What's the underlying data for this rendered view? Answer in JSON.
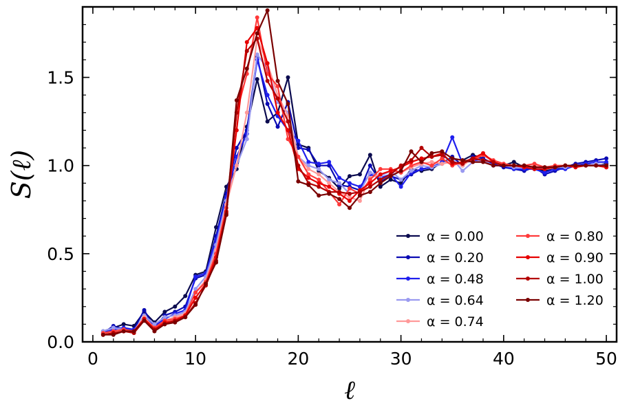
{
  "chart_data": {
    "type": "line",
    "xlabel": "ℓ",
    "ylabel": "S(ℓ)",
    "xlim": [
      -1,
      51
    ],
    "ylim": [
      0,
      1.9
    ],
    "xticks": [
      0,
      10,
      20,
      30,
      40,
      50
    ],
    "xtick_labels": [
      "0",
      "10",
      "20",
      "30",
      "40",
      "50"
    ],
    "yticks": [
      0.0,
      0.5,
      1.0,
      1.5
    ],
    "ytick_labels": [
      "0.0",
      "0.5",
      "1.0",
      "1.5"
    ],
    "grid": false,
    "legend_position": "lower-right",
    "legend_columns": 2,
    "x": [
      1,
      2,
      3,
      4,
      5,
      6,
      7,
      8,
      9,
      10,
      11,
      12,
      13,
      14,
      15,
      16,
      17,
      18,
      19,
      20,
      21,
      22,
      23,
      24,
      25,
      26,
      27,
      28,
      29,
      30,
      31,
      32,
      33,
      34,
      35,
      36,
      37,
      38,
      39,
      40,
      41,
      42,
      43,
      44,
      45,
      46,
      47,
      48,
      49,
      50
    ],
    "series": [
      {
        "name": "α = 0.00",
        "color": "#0b0b4f",
        "values": [
          0.06,
          0.08,
          0.1,
          0.09,
          0.17,
          0.11,
          0.17,
          0.2,
          0.26,
          0.38,
          0.4,
          0.65,
          0.88,
          0.98,
          1.22,
          1.49,
          1.25,
          1.3,
          1.5,
          1.12,
          1.1,
          0.97,
          0.93,
          0.87,
          0.94,
          0.95,
          1.06,
          0.88,
          0.92,
          0.9,
          0.98,
          0.97,
          0.98,
          1.02,
          1.04,
          1.03,
          1.06,
          1.04,
          1.0,
          1.0,
          1.02,
          0.99,
          0.98,
          0.97,
          0.98,
          0.99,
          1.0,
          1.01,
          1.0,
          1.01
        ]
      },
      {
        "name": "α = 0.20",
        "color": "#0a0ab3",
        "values": [
          0.05,
          0.09,
          0.07,
          0.07,
          0.18,
          0.08,
          0.15,
          0.17,
          0.2,
          0.36,
          0.38,
          0.6,
          0.84,
          1.1,
          1.2,
          1.62,
          1.35,
          1.22,
          1.36,
          1.1,
          1.09,
          1.0,
          1.0,
          0.89,
          0.88,
          0.86,
          1.0,
          0.91,
          0.94,
          0.92,
          0.95,
          0.98,
          0.99,
          1.01,
          1.05,
          1.0,
          1.05,
          1.04,
          1.01,
          0.99,
          0.98,
          0.97,
          0.99,
          0.95,
          0.97,
          0.99,
          1.01,
          1.02,
          1.03,
          1.04
        ]
      },
      {
        "name": "α = 0.48",
        "color": "#1f1fee",
        "values": [
          0.05,
          0.07,
          0.08,
          0.07,
          0.14,
          0.09,
          0.13,
          0.16,
          0.18,
          0.37,
          0.39,
          0.58,
          0.82,
          1.05,
          1.18,
          1.6,
          1.4,
          1.28,
          1.2,
          1.14,
          1.02,
          1.01,
          1.02,
          0.93,
          0.9,
          0.88,
          0.95,
          0.93,
          0.95,
          0.88,
          0.96,
          0.98,
          0.99,
          1.02,
          1.16,
          1.01,
          1.03,
          1.03,
          1.0,
          1.0,
          0.98,
          0.98,
          0.98,
          0.96,
          0.98,
          0.98,
          1.0,
          1.01,
          1.02,
          1.02
        ]
      },
      {
        "name": "α = 0.64",
        "color": "#9a9af0",
        "values": [
          0.06,
          0.08,
          0.07,
          0.06,
          0.15,
          0.1,
          0.14,
          0.15,
          0.17,
          0.3,
          0.37,
          0.55,
          0.8,
          1.0,
          1.15,
          1.63,
          1.55,
          1.36,
          1.3,
          1.05,
          1.0,
          0.98,
          0.92,
          0.9,
          0.84,
          0.85,
          0.96,
          0.94,
          0.97,
          0.92,
          0.97,
          1.0,
          0.99,
          1.01,
          1.04,
          0.97,
          1.02,
          1.03,
          1.0,
          1.0,
          0.99,
          0.99,
          0.99,
          0.98,
          0.99,
          0.99,
          1.0,
          1.0,
          1.01,
          1.0
        ]
      },
      {
        "name": "α = 0.74",
        "color": "#ff9999",
        "values": [
          0.05,
          0.06,
          0.07,
          0.06,
          0.14,
          0.08,
          0.12,
          0.14,
          0.16,
          0.28,
          0.35,
          0.52,
          0.78,
          1.0,
          1.3,
          1.72,
          1.58,
          1.4,
          1.28,
          1.05,
          0.98,
          0.95,
          0.9,
          0.85,
          0.82,
          0.8,
          0.93,
          0.95,
          0.97,
          0.96,
          0.99,
          1.01,
          1.02,
          1.01,
          1.02,
          1.0,
          1.04,
          1.06,
          1.02,
          1.01,
          1.0,
          0.99,
          1.0,
          0.99,
          0.99,
          1.0,
          1.0,
          1.0,
          1.0,
          1.0
        ]
      },
      {
        "name": "α = 0.80",
        "color": "#ff3a3a",
        "values": [
          0.05,
          0.06,
          0.07,
          0.06,
          0.13,
          0.08,
          0.12,
          0.13,
          0.15,
          0.28,
          0.34,
          0.5,
          0.76,
          1.3,
          1.52,
          1.84,
          1.52,
          1.45,
          1.15,
          1.05,
          0.95,
          0.92,
          0.85,
          0.78,
          0.87,
          0.84,
          0.92,
          0.98,
          0.98,
          0.96,
          1.0,
          1.02,
          1.0,
          1.04,
          1.0,
          1.02,
          1.03,
          1.06,
          1.03,
          1.01,
          1.0,
          1.0,
          1.01,
          0.99,
          1.0,
          1.0,
          1.0,
          1.0,
          1.0,
          0.99
        ]
      },
      {
        "name": "α = 0.90",
        "color": "#e60000",
        "values": [
          0.04,
          0.05,
          0.06,
          0.06,
          0.13,
          0.07,
          0.11,
          0.12,
          0.15,
          0.25,
          0.33,
          0.48,
          0.74,
          1.2,
          1.7,
          1.78,
          1.58,
          1.3,
          1.2,
          0.98,
          0.93,
          0.9,
          0.88,
          0.84,
          0.8,
          0.86,
          0.9,
          0.95,
          0.97,
          0.99,
          1.02,
          1.04,
          1.05,
          1.07,
          1.01,
          1.02,
          1.04,
          1.07,
          1.02,
          1.0,
          1.0,
          0.99,
          0.98,
          0.98,
          0.99,
          1.0,
          0.99,
          1.0,
          1.0,
          0.99
        ]
      },
      {
        "name": "α = 1.00",
        "color": "#b30000",
        "values": [
          0.04,
          0.05,
          0.06,
          0.05,
          0.12,
          0.07,
          0.1,
          0.12,
          0.14,
          0.22,
          0.32,
          0.46,
          0.73,
          1.3,
          1.65,
          1.72,
          1.48,
          1.38,
          1.25,
          1.0,
          0.9,
          0.88,
          0.85,
          0.85,
          0.84,
          0.85,
          0.88,
          0.92,
          0.95,
          1.0,
          1.03,
          1.1,
          1.05,
          1.06,
          1.02,
          1.01,
          1.04,
          1.03,
          1.02,
          1.0,
          1.0,
          1.0,
          0.99,
          0.99,
          0.99,
          1.0,
          1.0,
          1.0,
          1.0,
          1.0
        ]
      },
      {
        "name": "α = 1.20",
        "color": "#7a0000",
        "values": [
          0.04,
          0.04,
          0.06,
          0.06,
          0.12,
          0.06,
          0.1,
          0.11,
          0.14,
          0.21,
          0.33,
          0.45,
          0.72,
          1.37,
          1.55,
          1.75,
          1.88,
          1.48,
          1.35,
          0.91,
          0.89,
          0.83,
          0.84,
          0.81,
          0.76,
          0.83,
          0.85,
          0.9,
          0.94,
          0.97,
          1.08,
          1.02,
          1.07,
          1.08,
          1.04,
          1.03,
          1.02,
          1.02,
          1.0,
          1.0,
          1.0,
          1.0,
          0.99,
          0.99,
          0.99,
          1.0,
          1.0,
          1.0,
          1.0,
          1.0
        ]
      }
    ]
  }
}
